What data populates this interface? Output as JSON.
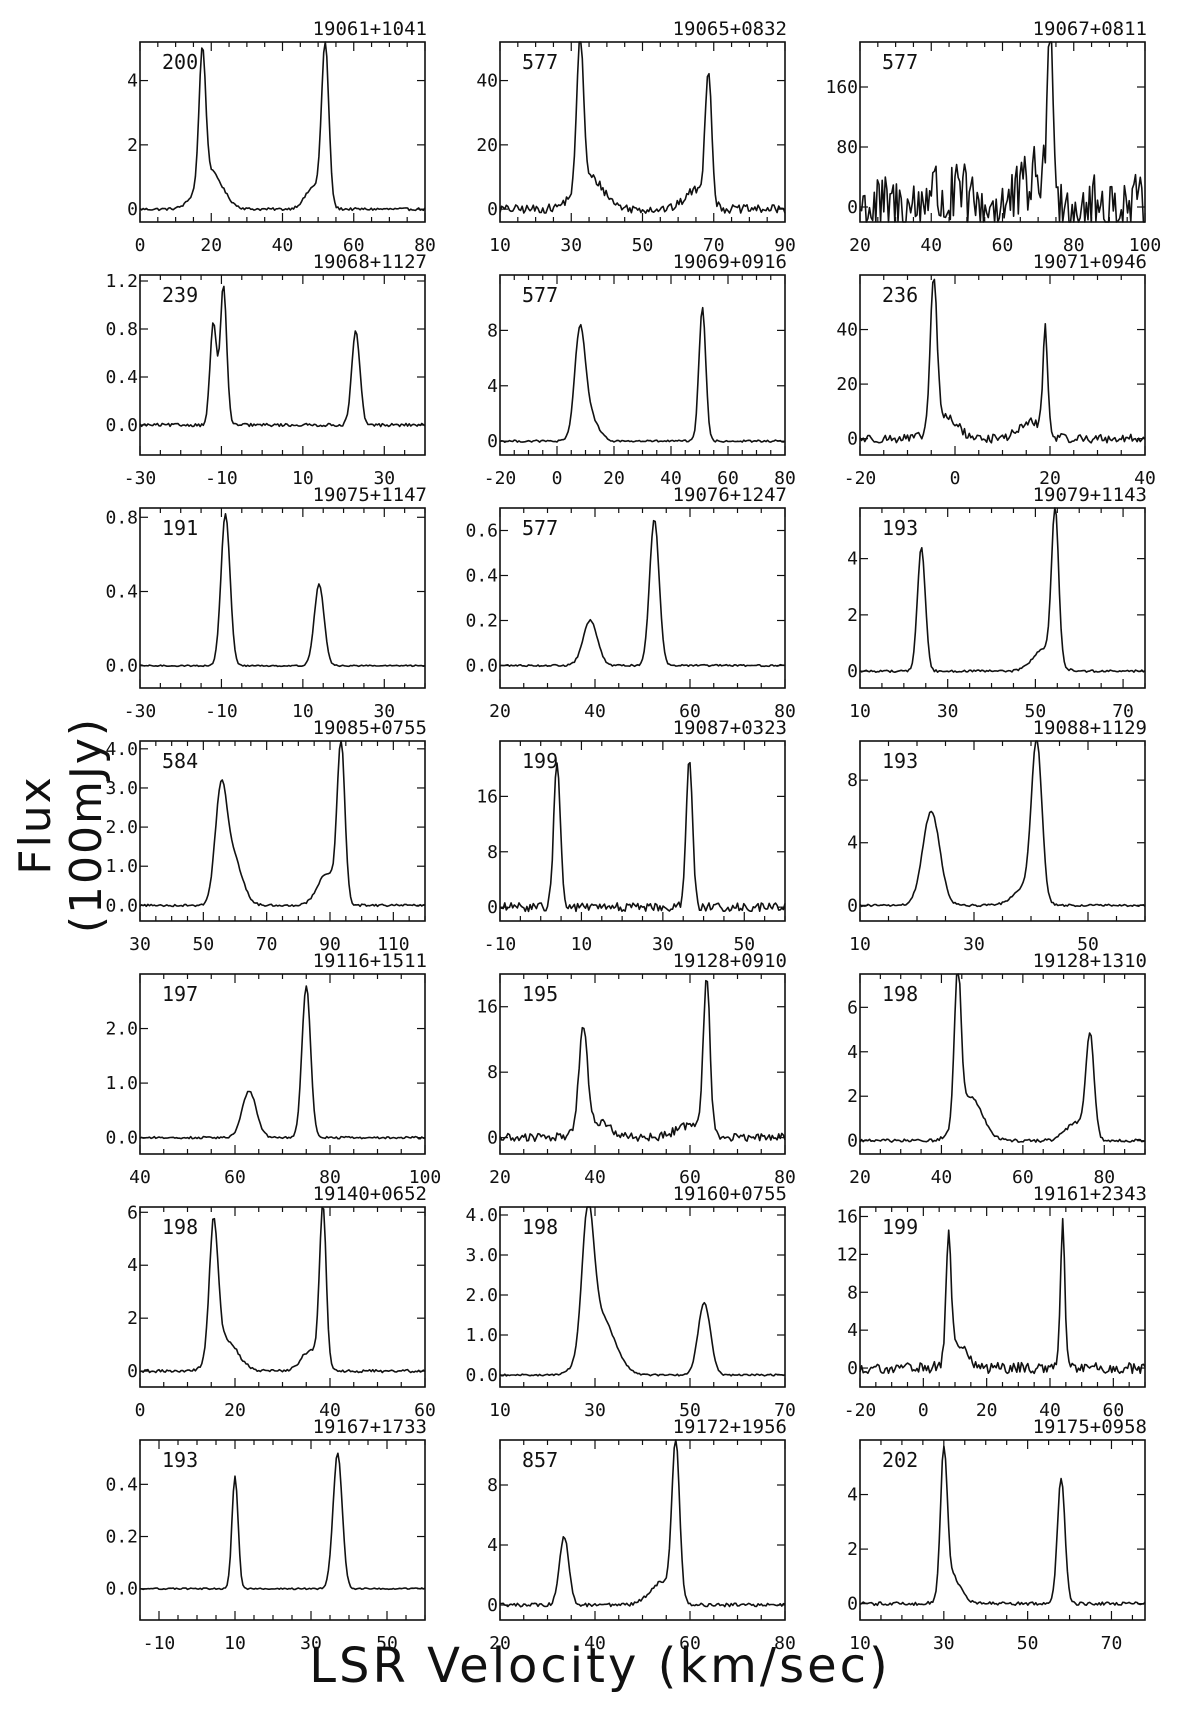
{
  "figure": {
    "ylabel": "Flux (100mJy)",
    "xlabel": "LSR Velocity (km/sec)"
  },
  "chart_data": [
    {
      "type": "line",
      "title": "19061+1041",
      "annotation": "200",
      "xlim": [
        0,
        80
      ],
      "xticks": [
        0,
        20,
        40,
        60,
        80
      ],
      "xtick_labels": [
        "0",
        "20",
        "40",
        "60",
        "80"
      ],
      "ylim": [
        -0.4,
        5.2
      ],
      "yticks": [
        0,
        2,
        4
      ],
      "ytick_labels": [
        "0",
        "2",
        "4"
      ],
      "noise": 0.06,
      "baseline": 0,
      "peaks": [
        {
          "x": 17.5,
          "y": 4.1,
          "w": 0.9
        },
        {
          "x": 19.5,
          "y": 1.2,
          "w": 3.5
        },
        {
          "x": 52,
          "y": 4.9,
          "w": 1.0
        },
        {
          "x": 49,
          "y": 0.7,
          "w": 2.5
        }
      ],
      "series_name": ""
    },
    {
      "type": "line",
      "title": "19065+0832",
      "annotation": "577",
      "xlim": [
        10,
        90
      ],
      "xticks": [
        10,
        30,
        50,
        70,
        90
      ],
      "xtick_labels": [
        "10",
        "30",
        "50",
        "70",
        "90"
      ],
      "ylim": [
        -4,
        52
      ],
      "yticks": [
        0,
        20,
        40
      ],
      "ytick_labels": [
        "0",
        "20",
        "40"
      ],
      "noise": 0.2,
      "baseline": 0,
      "peaks": [
        {
          "x": 32.5,
          "y": 48,
          "w": 0.9
        },
        {
          "x": 35,
          "y": 10,
          "w": 4
        },
        {
          "x": 68.5,
          "y": 41,
          "w": 0.9
        },
        {
          "x": 65,
          "y": 6,
          "w": 3
        }
      ]
    },
    {
      "type": "line",
      "title": "19067+0811",
      "annotation": "577",
      "xlim": [
        20,
        100
      ],
      "xticks": [
        20,
        40,
        60,
        80,
        100
      ],
      "xtick_labels": [
        "20",
        "40",
        "60",
        "80",
        "100"
      ],
      "ylim": [
        -20,
        220
      ],
      "yticks": [
        0,
        80,
        160
      ],
      "ytick_labels": [
        "0",
        "80",
        "160"
      ],
      "noise": 1.5,
      "baseline": 0,
      "peaks": [
        {
          "x": 40,
          "y": 30,
          "w": 1.5
        },
        {
          "x": 48,
          "y": 18,
          "w": 2
        },
        {
          "x": 73.5,
          "y": 205,
          "w": 0.9
        },
        {
          "x": 70,
          "y": 40,
          "w": 4
        }
      ]
    },
    {
      "type": "line",
      "title": "19068+1127",
      "annotation": "239",
      "xlim": [
        -30,
        40
      ],
      "xticks": [
        -30,
        -10,
        10,
        30
      ],
      "xtick_labels": [
        "-30",
        "-10",
        "10",
        "30"
      ],
      "ylim": [
        -0.25,
        1.25
      ],
      "yticks": [
        0,
        0.4,
        0.8,
        1.2
      ],
      "ytick_labels": [
        "0.0",
        "0.4",
        "0.8",
        "1.2"
      ],
      "noise": 0.07,
      "baseline": 0,
      "peaks": [
        {
          "x": -12,
          "y": 0.85,
          "w": 0.8
        },
        {
          "x": -9.5,
          "y": 1.15,
          "w": 0.8
        },
        {
          "x": 23,
          "y": 0.78,
          "w": 1.0
        }
      ]
    },
    {
      "type": "line",
      "title": "19069+0916",
      "annotation": "577",
      "xlim": [
        -20,
        80
      ],
      "xticks": [
        -20,
        0,
        20,
        40,
        60,
        80
      ],
      "xtick_labels": [
        "-20",
        "0",
        "20",
        "40",
        "60",
        "80"
      ],
      "ylim": [
        -1,
        12
      ],
      "yticks": [
        0,
        4,
        8
      ],
      "ytick_labels": [
        "0",
        "4",
        "8"
      ],
      "noise": 0.05,
      "baseline": 0,
      "peaks": [
        {
          "x": 8,
          "y": 7.2,
          "w": 1.8
        },
        {
          "x": 11,
          "y": 2,
          "w": 3
        },
        {
          "x": 51,
          "y": 9.6,
          "w": 1.2
        }
      ]
    },
    {
      "type": "line",
      "title": "19071+0946",
      "annotation": "236",
      "xlim": [
        -20,
        40
      ],
      "xticks": [
        -20,
        0,
        20,
        40
      ],
      "xtick_labels": [
        "-20",
        "0",
        "20",
        "40"
      ],
      "ylim": [
        -6,
        60
      ],
      "yticks": [
        0,
        20,
        40
      ],
      "ytick_labels": [
        "0",
        "20",
        "40"
      ],
      "noise": 0.2,
      "baseline": 0,
      "peaks": [
        {
          "x": -4.5,
          "y": 55,
          "w": 0.7
        },
        {
          "x": -2,
          "y": 8,
          "w": 2.5
        },
        {
          "x": 19,
          "y": 38,
          "w": 0.5
        },
        {
          "x": 16,
          "y": 6,
          "w": 2.5
        }
      ]
    },
    {
      "type": "line",
      "title": "19075+1147",
      "annotation": "191",
      "xlim": [
        -30,
        40
      ],
      "xticks": [
        -30,
        -10,
        10,
        30
      ],
      "xtick_labels": [
        "-30",
        "-10",
        "10",
        "30"
      ],
      "ylim": [
        -0.12,
        0.85
      ],
      "yticks": [
        0,
        0.4,
        0.8
      ],
      "ytick_labels": [
        "0.0",
        "0.4",
        "0.8"
      ],
      "noise": 0.03,
      "baseline": 0,
      "peaks": [
        {
          "x": -9,
          "y": 0.82,
          "w": 1.1
        },
        {
          "x": 14,
          "y": 0.44,
          "w": 1.2
        }
      ]
    },
    {
      "type": "line",
      "title": "19076+1247",
      "annotation": "577",
      "xlim": [
        20,
        80
      ],
      "xticks": [
        20,
        40,
        60,
        80
      ],
      "xtick_labels": [
        "20",
        "40",
        "60",
        "80"
      ],
      "ylim": [
        -0.1,
        0.7
      ],
      "yticks": [
        0,
        0.2,
        0.4,
        0.6
      ],
      "ytick_labels": [
        "0.0",
        "0.2",
        "0.4",
        "0.6"
      ],
      "noise": 0.04,
      "baseline": 0,
      "peaks": [
        {
          "x": 39,
          "y": 0.2,
          "w": 1.5
        },
        {
          "x": 52.5,
          "y": 0.65,
          "w": 1.0
        }
      ]
    },
    {
      "type": "line",
      "title": "19079+1143",
      "annotation": "193",
      "xlim": [
        10,
        75
      ],
      "xticks": [
        10,
        30,
        50,
        70
      ],
      "xtick_labels": [
        "10",
        "30",
        "50",
        "70"
      ],
      "ylim": [
        -0.6,
        5.8
      ],
      "yticks": [
        0,
        2,
        4
      ],
      "ytick_labels": [
        "0",
        "2",
        "4"
      ],
      "noise": 0.05,
      "baseline": 0,
      "peaks": [
        {
          "x": 24,
          "y": 4.4,
          "w": 0.9
        },
        {
          "x": 54.5,
          "y": 5.4,
          "w": 0.8
        },
        {
          "x": 52,
          "y": 0.8,
          "w": 2.5
        }
      ]
    },
    {
      "type": "line",
      "title": "19085+0755",
      "annotation": "584",
      "xlim": [
        30,
        120
      ],
      "xticks": [
        30,
        50,
        70,
        90,
        110
      ],
      "xtick_labels": [
        "30",
        "50",
        "70",
        "90",
        "110"
      ],
      "ylim": [
        -0.4,
        4.2
      ],
      "yticks": [
        0,
        1,
        2,
        3,
        4
      ],
      "ytick_labels": [
        "0.0",
        "1.0",
        "2.0",
        "3.0",
        "4.0"
      ],
      "noise": 0.05,
      "baseline": 0,
      "peaks": [
        {
          "x": 55.5,
          "y": 2.5,
          "w": 1.8
        },
        {
          "x": 59,
          "y": 1.3,
          "w": 3
        },
        {
          "x": 93.5,
          "y": 4.0,
          "w": 1.2
        },
        {
          "x": 89,
          "y": 0.8,
          "w": 3
        }
      ]
    },
    {
      "type": "line",
      "title": "19087+0323",
      "annotation": "199",
      "xlim": [
        -10,
        60
      ],
      "xticks": [
        -10,
        10,
        30,
        50
      ],
      "xtick_labels": [
        "-10",
        "10",
        "30",
        "50"
      ],
      "ylim": [
        -2,
        24
      ],
      "yticks": [
        0,
        8,
        16
      ],
      "ytick_labels": [
        "0",
        "8",
        "16"
      ],
      "noise": 0.2,
      "baseline": 0,
      "peaks": [
        {
          "x": 4,
          "y": 21,
          "w": 0.8
        },
        {
          "x": 36.5,
          "y": 21,
          "w": 0.8
        }
      ]
    },
    {
      "type": "line",
      "title": "19088+1129",
      "annotation": "193",
      "xlim": [
        10,
        60
      ],
      "xticks": [
        10,
        30,
        50
      ],
      "xtick_labels": [
        "10",
        "30",
        "50"
      ],
      "ylim": [
        -1,
        10.5
      ],
      "yticks": [
        0,
        4,
        8
      ],
      "ytick_labels": [
        "0",
        "4",
        "8"
      ],
      "noise": 0.05,
      "baseline": 0,
      "peaks": [
        {
          "x": 22.5,
          "y": 6,
          "w": 1.5
        },
        {
          "x": 41,
          "y": 10,
          "w": 0.9
        },
        {
          "x": 39,
          "y": 1.2,
          "w": 2
        }
      ]
    },
    {
      "type": "line",
      "title": "19116+1511",
      "annotation": "197",
      "xlim": [
        40,
        100
      ],
      "xticks": [
        40,
        60,
        80,
        100
      ],
      "xtick_labels": [
        "40",
        "60",
        "80",
        "100"
      ],
      "ylim": [
        -0.3,
        3.0
      ],
      "yticks": [
        0,
        1,
        2
      ],
      "ytick_labels": [
        "0.0",
        "1.0",
        "2.0"
      ],
      "noise": 0.05,
      "baseline": 0,
      "peaks": [
        {
          "x": 63,
          "y": 0.85,
          "w": 1.5
        },
        {
          "x": 75,
          "y": 2.8,
          "w": 0.9
        }
      ]
    },
    {
      "type": "line",
      "title": "19128+0910",
      "annotation": "195",
      "xlim": [
        20,
        80
      ],
      "xticks": [
        20,
        40,
        60,
        80
      ],
      "xtick_labels": [
        "20",
        "40",
        "60",
        "80"
      ],
      "ylim": [
        -2,
        20
      ],
      "yticks": [
        0,
        8,
        16
      ],
      "ytick_labels": [
        "0",
        "8",
        "16"
      ],
      "noise": 0.2,
      "baseline": 0,
      "peaks": [
        {
          "x": 37.5,
          "y": 12,
          "w": 0.9
        },
        {
          "x": 40,
          "y": 2,
          "w": 3
        },
        {
          "x": 63.5,
          "y": 19,
          "w": 0.7
        },
        {
          "x": 60,
          "y": 1.5,
          "w": 3
        }
      ]
    },
    {
      "type": "line",
      "title": "19128+1310",
      "annotation": "198",
      "xlim": [
        20,
        90
      ],
      "xticks": [
        20,
        40,
        60,
        80
      ],
      "xtick_labels": [
        "20",
        "40",
        "60",
        "80"
      ],
      "ylim": [
        -0.6,
        7.5
      ],
      "yticks": [
        0,
        2,
        4,
        6
      ],
      "ytick_labels": [
        "0",
        "2",
        "4",
        "6"
      ],
      "noise": 0.07,
      "baseline": 0,
      "peaks": [
        {
          "x": 44,
          "y": 6.8,
          "w": 0.8
        },
        {
          "x": 47,
          "y": 2,
          "w": 3
        },
        {
          "x": 76.5,
          "y": 4.6,
          "w": 1.0
        },
        {
          "x": 73,
          "y": 0.8,
          "w": 2.5
        }
      ]
    },
    {
      "type": "line",
      "title": "19140+0652",
      "annotation": "198",
      "xlim": [
        0,
        60
      ],
      "xticks": [
        0,
        20,
        40,
        60
      ],
      "xtick_labels": [
        "0",
        "20",
        "40",
        "60"
      ],
      "ylim": [
        -0.6,
        6.2
      ],
      "yticks": [
        0,
        2,
        4,
        6
      ],
      "ytick_labels": [
        "0",
        "2",
        "4",
        "6"
      ],
      "noise": 0.07,
      "baseline": 0,
      "peaks": [
        {
          "x": 15.5,
          "y": 5.1,
          "w": 0.9
        },
        {
          "x": 18,
          "y": 1.2,
          "w": 2.5
        },
        {
          "x": 38.5,
          "y": 5.9,
          "w": 0.7
        },
        {
          "x": 36,
          "y": 0.8,
          "w": 2
        }
      ]
    },
    {
      "type": "line",
      "title": "19160+0755",
      "annotation": "198",
      "xlim": [
        10,
        70
      ],
      "xticks": [
        10,
        30,
        50,
        70
      ],
      "xtick_labels": [
        "10",
        "30",
        "50",
        "70"
      ],
      "ylim": [
        -0.3,
        4.2
      ],
      "yticks": [
        0,
        1,
        2,
        3,
        4
      ],
      "ytick_labels": [
        "0.0",
        "1.0",
        "2.0",
        "3.0",
        "4.0"
      ],
      "noise": 0.04,
      "baseline": 0,
      "peaks": [
        {
          "x": 28.5,
          "y": 3.3,
          "w": 1.2
        },
        {
          "x": 31,
          "y": 1.5,
          "w": 3
        },
        {
          "x": 53,
          "y": 1.8,
          "w": 1.3
        }
      ]
    },
    {
      "type": "line",
      "title": "19161+2343",
      "annotation": "199",
      "xlim": [
        -20,
        70
      ],
      "xticks": [
        -20,
        0,
        20,
        40,
        60
      ],
      "xtick_labels": [
        "-20",
        "0",
        "20",
        "40",
        "60"
      ],
      "ylim": [
        -2,
        17
      ],
      "yticks": [
        0,
        4,
        8,
        12,
        16
      ],
      "ytick_labels": [
        "0",
        "4",
        "8",
        "12",
        "16"
      ],
      "noise": 0.25,
      "baseline": 0,
      "peaks": [
        {
          "x": 8,
          "y": 12.5,
          "w": 0.8
        },
        {
          "x": 11,
          "y": 2.5,
          "w": 3
        },
        {
          "x": 44,
          "y": 15.5,
          "w": 0.7
        }
      ]
    },
    {
      "type": "line",
      "title": "19167+1733",
      "annotation": "193",
      "xlim": [
        -15,
        60
      ],
      "xticks": [
        -10,
        10,
        30,
        50
      ],
      "xtick_labels": [
        "-10",
        "10",
        "30",
        "50"
      ],
      "ylim": [
        -0.12,
        0.57
      ],
      "yticks": [
        0,
        0.2,
        0.4
      ],
      "ytick_labels": [
        "0.0",
        "0.2",
        "0.4"
      ],
      "noise": 0.035,
      "baseline": 0,
      "peaks": [
        {
          "x": 10,
          "y": 0.43,
          "w": 0.8
        },
        {
          "x": 37,
          "y": 0.52,
          "w": 1.2
        }
      ]
    },
    {
      "type": "line",
      "title": "19172+1956",
      "annotation": "857",
      "xlim": [
        20,
        80
      ],
      "xticks": [
        20,
        40,
        60,
        80
      ],
      "xtick_labels": [
        "20",
        "40",
        "60",
        "80"
      ],
      "ylim": [
        -1,
        11
      ],
      "yticks": [
        0,
        4,
        8
      ],
      "ytick_labels": [
        "0",
        "4",
        "8"
      ],
      "noise": 0.08,
      "baseline": 0,
      "peaks": [
        {
          "x": 33.5,
          "y": 4.6,
          "w": 1.0
        },
        {
          "x": 57,
          "y": 10.5,
          "w": 0.8
        },
        {
          "x": 54,
          "y": 1.5,
          "w": 2.5
        }
      ]
    },
    {
      "type": "line",
      "title": "19175+0958",
      "annotation": "202",
      "xlim": [
        10,
        78
      ],
      "xticks": [
        10,
        30,
        50,
        70
      ],
      "xtick_labels": [
        "10",
        "30",
        "50",
        "70"
      ],
      "ylim": [
        -0.6,
        6.0
      ],
      "yticks": [
        0,
        2,
        4
      ],
      "ytick_labels": [
        "0",
        "2",
        "4"
      ],
      "noise": 0.08,
      "baseline": 0,
      "peaks": [
        {
          "x": 30,
          "y": 5.2,
          "w": 0.8
        },
        {
          "x": 32,
          "y": 1,
          "w": 2
        },
        {
          "x": 58,
          "y": 4.6,
          "w": 0.9
        }
      ]
    }
  ]
}
